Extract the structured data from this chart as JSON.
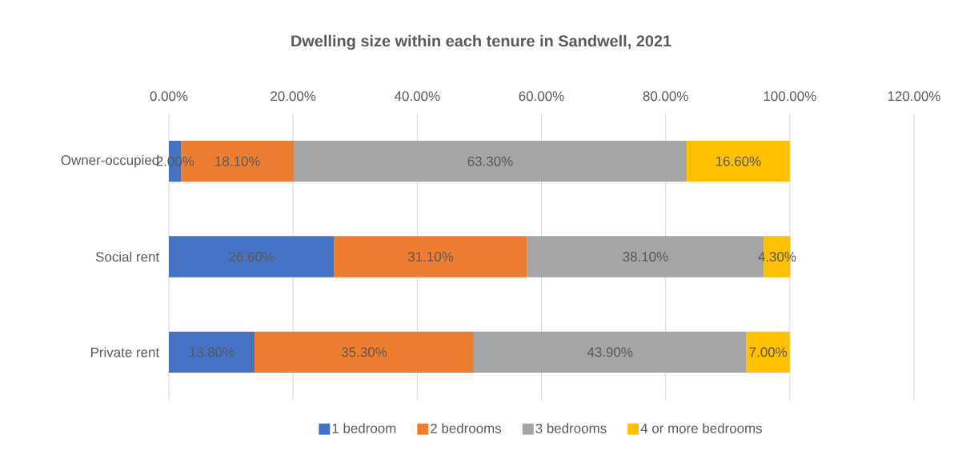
{
  "chart_data": {
    "type": "bar",
    "orientation": "horizontal",
    "stacked": true,
    "title": "Dwelling size within each tenure in Sandwell, 2021",
    "categories": [
      "Owner-occupied",
      "Social rent",
      "Private rent"
    ],
    "series": [
      {
        "name": "1 bedroom",
        "color": "#4472c4",
        "values": [
          2.0,
          26.6,
          13.8
        ],
        "value_labels": [
          "2.00%",
          "26.60%",
          "13.80%"
        ]
      },
      {
        "name": "2 bedrooms",
        "color": "#ed7d31",
        "values": [
          18.1,
          31.1,
          35.3
        ],
        "value_labels": [
          "18.10%",
          "31.10%",
          "35.30%"
        ]
      },
      {
        "name": "3 bedrooms",
        "color": "#a5a5a5",
        "values": [
          63.3,
          38.1,
          43.9
        ],
        "value_labels": [
          "63.30%",
          "38.10%",
          "43.90%"
        ]
      },
      {
        "name": "4 or more bedrooms",
        "color": "#ffc000",
        "values": [
          16.6,
          4.3,
          7.0
        ],
        "value_labels": [
          "16.60%",
          "4.30%",
          "7.00%"
        ]
      }
    ],
    "xlim": [
      0,
      120
    ],
    "xticks": [
      {
        "value": 0,
        "label": "0.00%"
      },
      {
        "value": 20,
        "label": "20.00%"
      },
      {
        "value": 40,
        "label": "40.00%"
      },
      {
        "value": 60,
        "label": "60.00%"
      },
      {
        "value": 80,
        "label": "80.00%"
      },
      {
        "value": 100,
        "label": "100.00%"
      },
      {
        "value": 120,
        "label": "120.00%"
      }
    ],
    "grid": "x",
    "legend": "bottom"
  }
}
